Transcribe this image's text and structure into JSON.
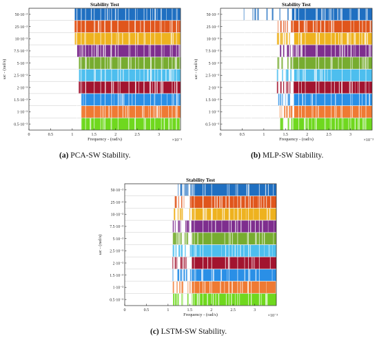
{
  "chart_data": [
    {
      "type": "heatmap",
      "panel_id": "a",
      "caption_letter": "(a)",
      "caption_text": " PCA-SW Stability.",
      "title": "Stability Test",
      "xlabel": "Frequency - (rad/s)",
      "x_multiplier": "×10⁻³",
      "x_ticks": [
        "0",
        "0.5",
        "1",
        "1.5",
        "2",
        "2.5",
        "3"
      ],
      "x_tick_values": [
        0,
        0.5,
        1,
        1.5,
        2,
        2.5,
        3
      ],
      "xlim": [
        0,
        3.5
      ],
      "ylabel": "ωc - (rad/s)",
      "y_ticks": [
        "50·10⁻³",
        "25·10⁻³",
        "10·10⁻³",
        "7.5·10⁻³",
        "5·10⁻³",
        "2.5·10⁻³",
        "2·10⁻³",
        "1.5·10⁻³",
        "1·10⁻³",
        "0.5·10⁻³"
      ],
      "stable_from": [
        1.13,
        1.13,
        1.13,
        1.25,
        1.25,
        1.25,
        1.25,
        1.25,
        1.25,
        1.25
      ],
      "transition_start": [
        1.05,
        1.05,
        1.05,
        1.1,
        1.15,
        1.15,
        1.15,
        1.2,
        1.2,
        1.2
      ],
      "unstable_strip_x": [
        1.1,
        1.2,
        1.3,
        1.5,
        1.65,
        1.75,
        1.9,
        2.05,
        2.3,
        2.45,
        2.65,
        2.8,
        2.9,
        3.05,
        3.3,
        3.4
      ],
      "row_colors": [
        "#1f6fc1",
        "#e0561c",
        "#eeb21f",
        "#7e2e8e",
        "#77ac30",
        "#4dbeee",
        "#a2142f",
        "#2a8fe6",
        "#ef7a33",
        "#6fd81e"
      ]
    },
    {
      "type": "heatmap",
      "panel_id": "b",
      "caption_letter": "(b)",
      "caption_text": " MLP-SW Stability.",
      "title": "Stability Test",
      "xlabel": "Frequency - (rad/s)",
      "x_multiplier": "×10⁻³",
      "x_ticks": [
        "0",
        "0.5",
        "1",
        "1.5",
        "2",
        "2.5",
        "3"
      ],
      "x_tick_values": [
        0,
        0.5,
        1,
        1.5,
        2,
        2.5,
        3
      ],
      "xlim": [
        0,
        3.5
      ],
      "ylabel": "ωc - (rad/s)",
      "y_ticks": [
        "50·10⁻³",
        "25·10⁻³",
        "10·10⁻³",
        "7.5·10⁻³",
        "5·10⁻³",
        "2.5·10⁻³",
        "2·10⁻³",
        "1.5·10⁻³",
        "1·10⁻³",
        "0.5·10⁻³"
      ],
      "stable_from": [
        1.65,
        1.7,
        1.7,
        1.7,
        1.7,
        1.7,
        1.7,
        1.7,
        1.7,
        1.7
      ],
      "transition_start": [
        0.5,
        1.3,
        1.3,
        1.3,
        1.3,
        1.3,
        1.3,
        1.3,
        1.3,
        1.3
      ],
      "unstable_strip_x": [
        0.55,
        0.7,
        1.0,
        1.15,
        1.35,
        1.5,
        1.8,
        1.95,
        2.2,
        2.4,
        2.55,
        2.8,
        3.0,
        3.2,
        3.35
      ],
      "row_colors": [
        "#1f6fc1",
        "#e0561c",
        "#eeb21f",
        "#7e2e8e",
        "#77ac30",
        "#4dbeee",
        "#a2142f",
        "#2a8fe6",
        "#ef7a33",
        "#6fd81e"
      ]
    },
    {
      "type": "heatmap",
      "panel_id": "c",
      "caption_letter": "(c)",
      "caption_text": " LSTM-SW Stability.",
      "title": "Stability Test",
      "xlabel": "Frequency - (rad/s)",
      "x_multiplier": "×10⁻³",
      "x_ticks": [
        "0",
        "0.5",
        "1",
        "1.5",
        "2",
        "2.5",
        "3"
      ],
      "x_tick_values": [
        0,
        0.5,
        1,
        1.5,
        2,
        2.5,
        3
      ],
      "xlim": [
        0,
        3.5
      ],
      "ylabel": "ωc - (rad/s)",
      "y_ticks": [
        "50·10⁻³",
        "25·10⁻³",
        "10·10⁻³",
        "7.5·10⁻³",
        "5·10⁻³",
        "2.5·10⁻³",
        "2·10⁻³",
        "1.5·10⁻³",
        "1·10⁻³",
        "0.5·10⁻³"
      ],
      "stable_from": [
        1.55,
        1.55,
        1.55,
        1.55,
        1.55,
        1.55,
        1.55,
        1.55,
        1.55,
        1.55
      ],
      "transition_start": [
        1.1,
        1.1,
        1.1,
        1.1,
        1.1,
        1.1,
        1.1,
        1.1,
        1.1,
        1.1
      ],
      "unstable_strip_x": [
        1.2,
        1.35,
        1.6,
        1.8,
        2.0,
        2.4,
        2.6,
        2.85,
        3.1
      ],
      "row_colors": [
        "#1f6fc1",
        "#e0561c",
        "#eeb21f",
        "#7e2e8e",
        "#77ac30",
        "#4dbeee",
        "#a2142f",
        "#2a8fe6",
        "#ef7a33",
        "#6fd81e"
      ]
    }
  ]
}
